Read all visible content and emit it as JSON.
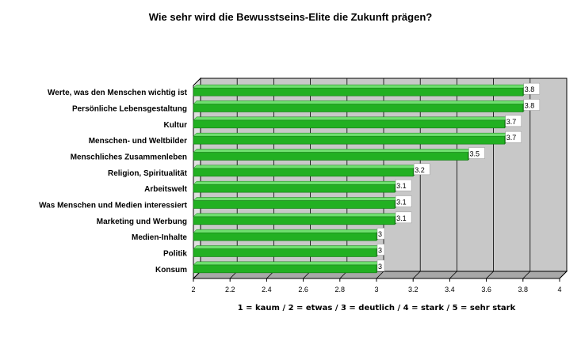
{
  "chart_data": {
    "type": "bar",
    "orientation": "horizontal",
    "title": "Wie sehr wird die Bewusstseins-Elite die Zukunft prägen?",
    "xlabel": "1 = kaum  /  2 = etwas  /  3 = deutlich  /  4 = stark  /  5 = sehr stark",
    "ylabel": "",
    "xlim": [
      2,
      4
    ],
    "x_ticks": [
      "2",
      "2.2",
      "2.4",
      "2.6",
      "2.8",
      "3",
      "3.2",
      "3.4",
      "3.6",
      "3.8",
      "4"
    ],
    "grid": true,
    "categories": [
      "Werte, was den Menschen wichtig ist",
      "Persönliche Lebensgestaltung",
      "Kultur",
      "Menschen- und Weltbilder",
      "Menschliches Zusammenleben",
      "Religion, Spiritualität",
      "Arbeitswelt",
      "Was Menschen und Medien interessiert",
      "Marketing und Werbung",
      "Medien-Inhalte",
      "Politik",
      "Konsum"
    ],
    "values": [
      3.8,
      3.8,
      3.7,
      3.7,
      3.5,
      3.2,
      3.1,
      3.1,
      3.1,
      3,
      3,
      3
    ],
    "value_labels": [
      "3.8",
      "3.8",
      "3.7",
      "3.7",
      "3.5",
      "3.2",
      "3.1",
      "3.1",
      "3.1",
      "3",
      "3",
      "3"
    ],
    "colors": {
      "bar": "#22b022",
      "bar_light": "#6fe06f",
      "bar_dark": "#117a11",
      "plot_back": "#c8c8c8",
      "plot_floor": "#a8a8a8",
      "grid": "#000000"
    }
  }
}
